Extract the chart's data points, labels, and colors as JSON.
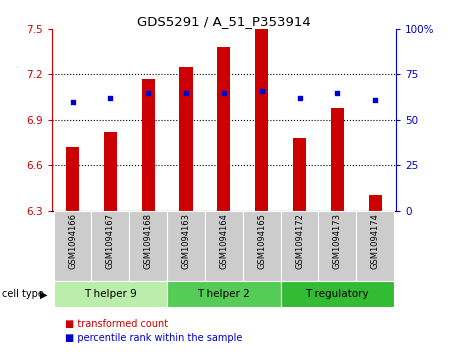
{
  "title": "GDS5291 / A_51_P353914",
  "samples": [
    "GSM1094166",
    "GSM1094167",
    "GSM1094168",
    "GSM1094163",
    "GSM1094164",
    "GSM1094165",
    "GSM1094172",
    "GSM1094173",
    "GSM1094174"
  ],
  "transformed_counts": [
    6.72,
    6.82,
    7.17,
    7.25,
    7.38,
    7.5,
    6.78,
    6.98,
    6.4
  ],
  "percentile_ranks": [
    60,
    62,
    65,
    65,
    65,
    66,
    62,
    65,
    61
  ],
  "ylim_left": [
    6.3,
    7.5
  ],
  "ylim_right": [
    0,
    100
  ],
  "yticks_left": [
    6.3,
    6.6,
    6.9,
    7.2,
    7.5
  ],
  "yticks_right": [
    0,
    25,
    50,
    75,
    100
  ],
  "ytick_labels_left": [
    "6.3",
    "6.6",
    "6.9",
    "7.2",
    "7.5"
  ],
  "ytick_labels_right": [
    "0",
    "25",
    "50",
    "75",
    "100%"
  ],
  "bar_color": "#cc0000",
  "dot_color": "#0000cc",
  "bar_width": 0.35,
  "group_spans": [
    {
      "label": "T helper 9",
      "start": 0,
      "end": 2,
      "color": "#bbeeaa"
    },
    {
      "label": "T helper 2",
      "start": 3,
      "end": 5,
      "color": "#55cc55"
    },
    {
      "label": "T regulatory",
      "start": 6,
      "end": 8,
      "color": "#33bb33"
    }
  ],
  "legend_bar_label": "transformed count",
  "legend_dot_label": "percentile rank within the sample",
  "cell_type_label": "cell type",
  "background_color": "#ffffff",
  "tick_bg_color": "#cccccc",
  "grid_yticks": [
    6.6,
    6.9,
    7.2
  ]
}
